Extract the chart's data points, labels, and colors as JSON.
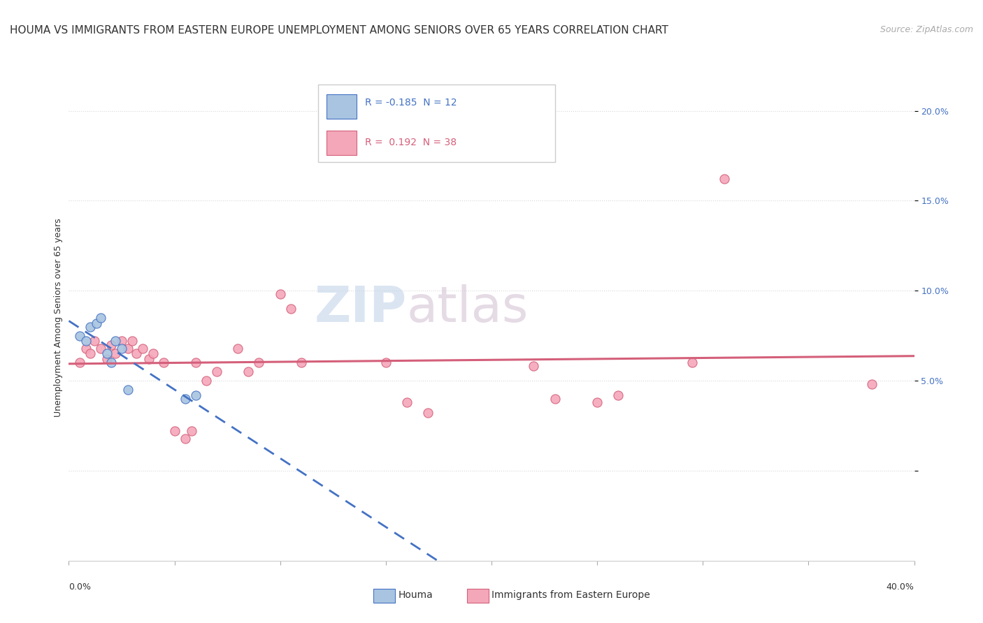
{
  "title": "HOUMA VS IMMIGRANTS FROM EASTERN EUROPE UNEMPLOYMENT AMONG SENIORS OVER 65 YEARS CORRELATION CHART",
  "source": "Source: ZipAtlas.com",
  "ylabel": "Unemployment Among Seniors over 65 years",
  "xmin": 0.0,
  "xmax": 0.4,
  "ymin": -0.05,
  "ymax": 0.22,
  "yticks": [
    0.0,
    0.05,
    0.1,
    0.15,
    0.2
  ],
  "ytick_labels": [
    "",
    "5.0%",
    "10.0%",
    "15.0%",
    "20.0%"
  ],
  "legend_R_blue": "-0.185",
  "legend_N_blue": "12",
  "legend_R_pink": "0.192",
  "legend_N_pink": "38",
  "blue_color": "#a8c4e0",
  "blue_line_color": "#4472c4",
  "pink_color": "#f4a7b9",
  "pink_line_color": "#d45f7a",
  "grid_color": "#d8d8d8",
  "background_color": "#ffffff",
  "title_fontsize": 11,
  "axis_label_fontsize": 9,
  "tick_fontsize": 9,
  "legend_fontsize": 10,
  "source_fontsize": 9,
  "blue_dots": [
    [
      0.005,
      0.075
    ],
    [
      0.008,
      0.072
    ],
    [
      0.01,
      0.08
    ],
    [
      0.013,
      0.082
    ],
    [
      0.015,
      0.085
    ],
    [
      0.018,
      0.065
    ],
    [
      0.02,
      0.06
    ],
    [
      0.022,
      0.072
    ],
    [
      0.025,
      0.068
    ],
    [
      0.028,
      0.045
    ],
    [
      0.055,
      0.04
    ],
    [
      0.06,
      0.042
    ]
  ],
  "pink_dots": [
    [
      0.005,
      0.06
    ],
    [
      0.008,
      0.068
    ],
    [
      0.01,
      0.065
    ],
    [
      0.012,
      0.072
    ],
    [
      0.015,
      0.068
    ],
    [
      0.018,
      0.062
    ],
    [
      0.02,
      0.07
    ],
    [
      0.022,
      0.065
    ],
    [
      0.025,
      0.072
    ],
    [
      0.028,
      0.068
    ],
    [
      0.03,
      0.072
    ],
    [
      0.032,
      0.065
    ],
    [
      0.035,
      0.068
    ],
    [
      0.038,
      0.062
    ],
    [
      0.04,
      0.065
    ],
    [
      0.045,
      0.06
    ],
    [
      0.05,
      0.022
    ],
    [
      0.055,
      0.018
    ],
    [
      0.058,
      0.022
    ],
    [
      0.06,
      0.06
    ],
    [
      0.065,
      0.05
    ],
    [
      0.07,
      0.055
    ],
    [
      0.08,
      0.068
    ],
    [
      0.085,
      0.055
    ],
    [
      0.09,
      0.06
    ],
    [
      0.1,
      0.098
    ],
    [
      0.105,
      0.09
    ],
    [
      0.11,
      0.06
    ],
    [
      0.15,
      0.06
    ],
    [
      0.16,
      0.038
    ],
    [
      0.17,
      0.032
    ],
    [
      0.22,
      0.058
    ],
    [
      0.23,
      0.04
    ],
    [
      0.25,
      0.038
    ],
    [
      0.26,
      0.042
    ],
    [
      0.295,
      0.06
    ],
    [
      0.31,
      0.162
    ],
    [
      0.38,
      0.048
    ]
  ]
}
